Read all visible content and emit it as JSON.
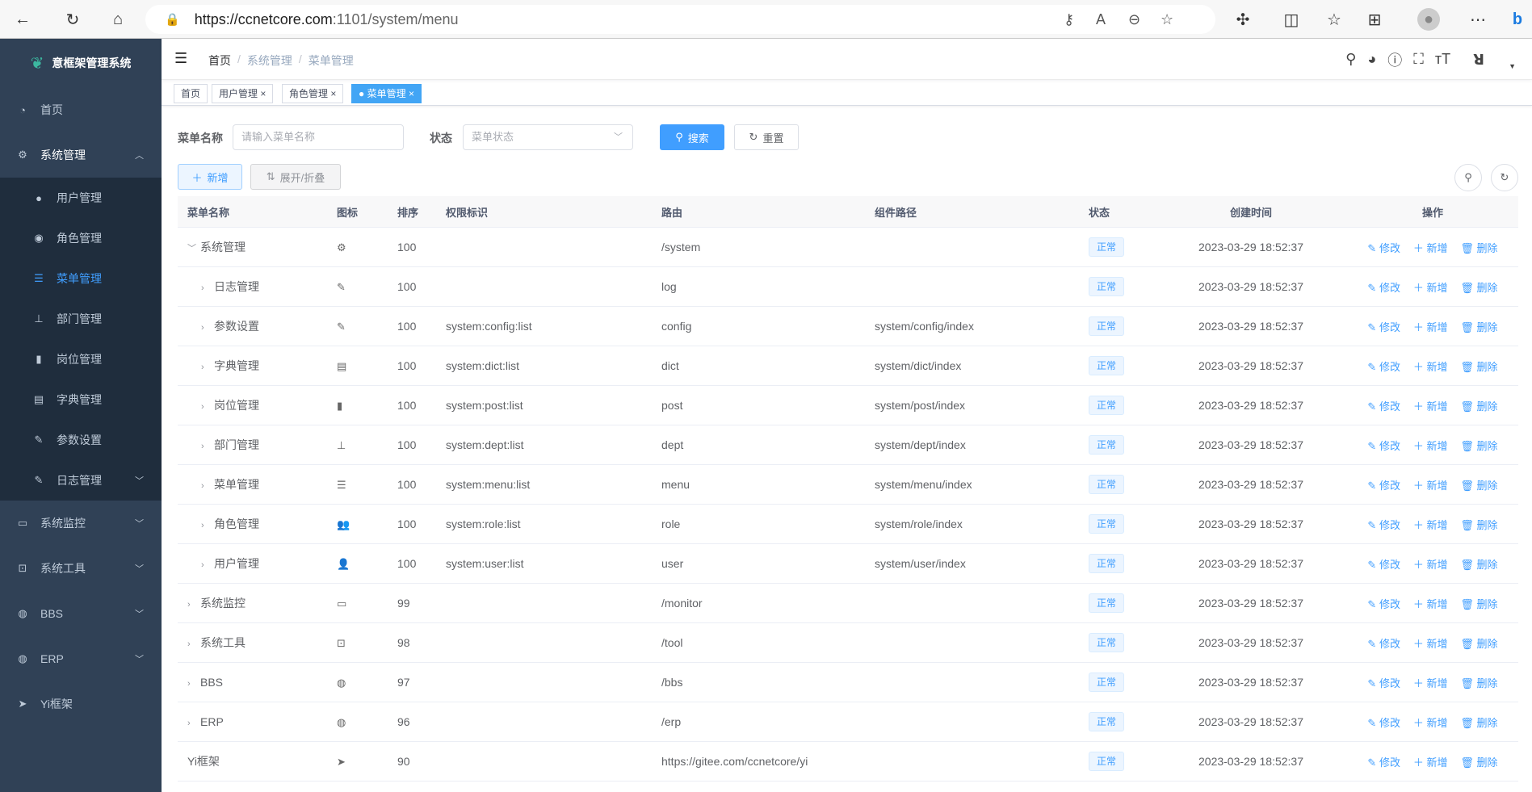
{
  "browser": {
    "url_host": "https://ccnetcore.com",
    "url_path": ":1101/system/menu"
  },
  "sidebar": {
    "title": "意框架管理系统",
    "items": [
      {
        "label": "首页",
        "icon": "dashboard-icon"
      },
      {
        "label": "系统管理",
        "icon": "gear-icon",
        "expanded": true,
        "children": [
          {
            "label": "用户管理",
            "icon": "user-icon"
          },
          {
            "label": "角色管理",
            "icon": "peoples-icon"
          },
          {
            "label": "菜单管理",
            "icon": "tree-table-icon",
            "active": true
          },
          {
            "label": "部门管理",
            "icon": "tree-icon"
          },
          {
            "label": "岗位管理",
            "icon": "post-icon"
          },
          {
            "label": "字典管理",
            "icon": "dict-icon"
          },
          {
            "label": "参数设置",
            "icon": "edit-icon"
          },
          {
            "label": "日志管理",
            "icon": "log-icon",
            "has_children": true
          }
        ]
      },
      {
        "label": "系统监控",
        "icon": "monitor-icon"
      },
      {
        "label": "系统工具",
        "icon": "tool-icon"
      },
      {
        "label": "BBS",
        "icon": "globe-icon"
      },
      {
        "label": "ERP",
        "icon": "globe-icon"
      },
      {
        "label": "Yi框架",
        "icon": "paper-plane-icon"
      }
    ]
  },
  "breadcrumb": [
    "首页",
    "系统管理",
    "菜单管理"
  ],
  "tags": [
    {
      "label": "首页"
    },
    {
      "label": "用户管理"
    },
    {
      "label": "角色管理"
    },
    {
      "label": "菜单管理",
      "active": true
    }
  ],
  "search": {
    "name_label": "菜单名称",
    "name_placeholder": "请输入菜单名称",
    "status_label": "状态",
    "status_placeholder": "菜单状态",
    "search_btn": "搜索",
    "reset_btn": "重置"
  },
  "toolbar": {
    "add_btn": "新增",
    "expand_btn": "展开/折叠"
  },
  "table": {
    "headers": [
      "菜单名称",
      "图标",
      "排序",
      "权限标识",
      "路由",
      "组件路径",
      "状态",
      "创建时间",
      "操作"
    ],
    "actions": {
      "edit": "修改",
      "add": "新增",
      "delete": "删除"
    },
    "rows": [
      {
        "name": "系统管理",
        "level": 0,
        "expand": "down",
        "icon": "⚙",
        "sort": "100",
        "perm": "",
        "route": "/system",
        "component": "",
        "status": "正常",
        "created": "2023-03-29 18:52:37"
      },
      {
        "name": "日志管理",
        "level": 1,
        "expand": "right",
        "icon": "✎",
        "sort": "100",
        "perm": "",
        "route": "log",
        "component": "",
        "status": "正常",
        "created": "2023-03-29 18:52:37"
      },
      {
        "name": "参数设置",
        "level": 1,
        "expand": "right",
        "icon": "✎",
        "sort": "100",
        "perm": "system:config:list",
        "route": "config",
        "component": "system/config/index",
        "status": "正常",
        "created": "2023-03-29 18:52:37"
      },
      {
        "name": "字典管理",
        "level": 1,
        "expand": "right",
        "icon": "▤",
        "sort": "100",
        "perm": "system:dict:list",
        "route": "dict",
        "component": "system/dict/index",
        "status": "正常",
        "created": "2023-03-29 18:52:37"
      },
      {
        "name": "岗位管理",
        "level": 1,
        "expand": "right",
        "icon": "▮",
        "sort": "100",
        "perm": "system:post:list",
        "route": "post",
        "component": "system/post/index",
        "status": "正常",
        "created": "2023-03-29 18:52:37"
      },
      {
        "name": "部门管理",
        "level": 1,
        "expand": "right",
        "icon": "⊥",
        "sort": "100",
        "perm": "system:dept:list",
        "route": "dept",
        "component": "system/dept/index",
        "status": "正常",
        "created": "2023-03-29 18:52:37"
      },
      {
        "name": "菜单管理",
        "level": 1,
        "expand": "right",
        "icon": "☰",
        "sort": "100",
        "perm": "system:menu:list",
        "route": "menu",
        "component": "system/menu/index",
        "status": "正常",
        "created": "2023-03-29 18:52:37"
      },
      {
        "name": "角色管理",
        "level": 1,
        "expand": "right",
        "icon": "👥",
        "sort": "100",
        "perm": "system:role:list",
        "route": "role",
        "component": "system/role/index",
        "status": "正常",
        "created": "2023-03-29 18:52:37"
      },
      {
        "name": "用户管理",
        "level": 1,
        "expand": "right",
        "icon": "👤",
        "sort": "100",
        "perm": "system:user:list",
        "route": "user",
        "component": "system/user/index",
        "status": "正常",
        "created": "2023-03-29 18:52:37"
      },
      {
        "name": "系统监控",
        "level": 0,
        "expand": "right",
        "icon": "▭",
        "sort": "99",
        "perm": "",
        "route": "/monitor",
        "component": "",
        "status": "正常",
        "created": "2023-03-29 18:52:37"
      },
      {
        "name": "系统工具",
        "level": 0,
        "expand": "right",
        "icon": "⊡",
        "sort": "98",
        "perm": "",
        "route": "/tool",
        "component": "",
        "status": "正常",
        "created": "2023-03-29 18:52:37"
      },
      {
        "name": "BBS",
        "level": 0,
        "expand": "right",
        "icon": "◍",
        "sort": "97",
        "perm": "",
        "route": "/bbs",
        "component": "",
        "status": "正常",
        "created": "2023-03-29 18:52:37"
      },
      {
        "name": "ERP",
        "level": 0,
        "expand": "right",
        "icon": "◍",
        "sort": "96",
        "perm": "",
        "route": "/erp",
        "component": "",
        "status": "正常",
        "created": "2023-03-29 18:52:37"
      },
      {
        "name": "Yi框架",
        "level": 0,
        "expand": "",
        "icon": "➤",
        "sort": "90",
        "perm": "",
        "route": "https://gitee.com/ccnetcore/yi",
        "component": "",
        "status": "正常",
        "created": "2023-03-29 18:52:37"
      }
    ]
  },
  "colors": {
    "sidebar": "#304156",
    "submenu": "#1f2d3d",
    "primary": "#409eff"
  }
}
